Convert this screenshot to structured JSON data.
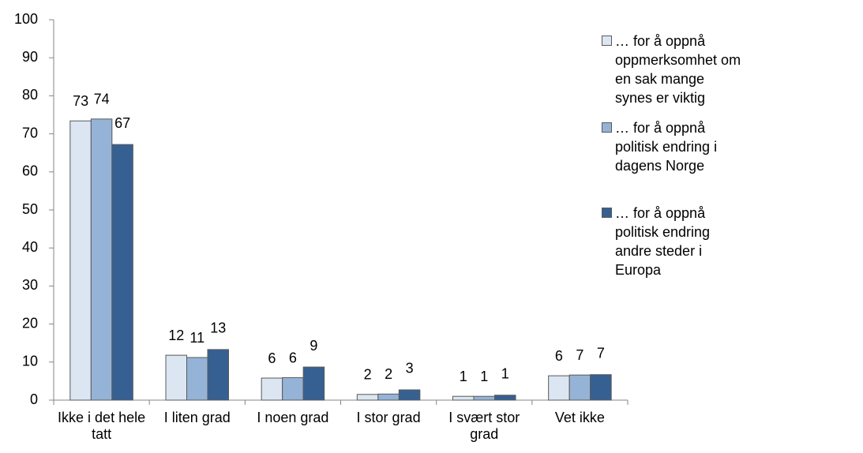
{
  "chart_data": {
    "type": "bar",
    "categories": [
      "Ikke i det hele tatt",
      "I liten grad",
      "I noen grad",
      "I stor grad",
      "I svært stor grad",
      "Vet ikke"
    ],
    "series": [
      {
        "name": "… for å oppnå oppmerksomhet om en sak mange synes er viktig",
        "color": "#dce6f2",
        "values": [
          73.4,
          11.8,
          5.8,
          1.5,
          1.0,
          6.4
        ],
        "value_labels": [
          "73",
          "12",
          "6",
          "2",
          "1",
          "6"
        ]
      },
      {
        "name": "… for å oppnå politisk endring i dagens Norge",
        "color": "#95b3d7",
        "values": [
          73.9,
          11.2,
          5.9,
          1.6,
          1.0,
          6.6
        ],
        "value_labels": [
          "74",
          "11",
          "6",
          "2",
          "1",
          "7"
        ]
      },
      {
        "name": "… for å oppnå politisk endring andre steder i Europa",
        "color": "#376092",
        "values": [
          67.2,
          13.3,
          8.7,
          2.7,
          1.3,
          6.7
        ],
        "value_labels": [
          "67",
          "13",
          "9",
          "3",
          "1",
          "7"
        ]
      }
    ],
    "ylim": [
      0,
      100
    ],
    "yticks": [
      0,
      10,
      20,
      30,
      40,
      50,
      60,
      70,
      80,
      90,
      100
    ],
    "legend": "right"
  }
}
